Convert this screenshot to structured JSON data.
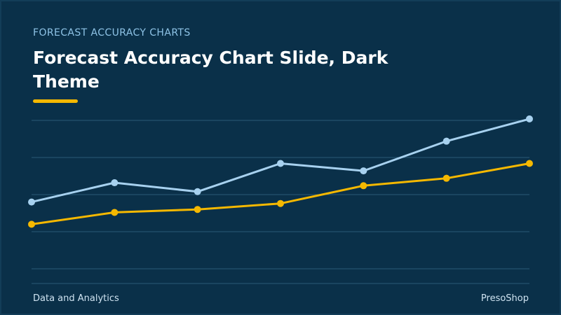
{
  "header": {
    "eyebrow": "FORECAST ACCURACY CHARTS",
    "title": "Forecast Accuracy Chart Slide, Dark Theme"
  },
  "footer": {
    "left": "Data and Analytics",
    "right": "PresoShop"
  },
  "colors": {
    "background": "#0a3049",
    "accent": "#f5b800",
    "series_blue": "#a7d1ef",
    "series_yellow": "#f5b800",
    "grid": "#2a5a78"
  },
  "chart_data": {
    "type": "line",
    "title": "",
    "xlabel": "",
    "ylabel": "",
    "grid": true,
    "legend": "none",
    "x": [
      1,
      2,
      3,
      4,
      5,
      6,
      7
    ],
    "ylim": [
      0,
      100
    ],
    "yticks": [
      0,
      25,
      50,
      75,
      100
    ],
    "series": [
      {
        "color": "#a7d1ef",
        "values": [
          45,
          58,
          52,
          71,
          66,
          86,
          101
        ]
      },
      {
        "color": "#f5b800",
        "values": [
          30,
          38,
          40,
          44,
          56,
          61,
          71
        ]
      }
    ]
  }
}
